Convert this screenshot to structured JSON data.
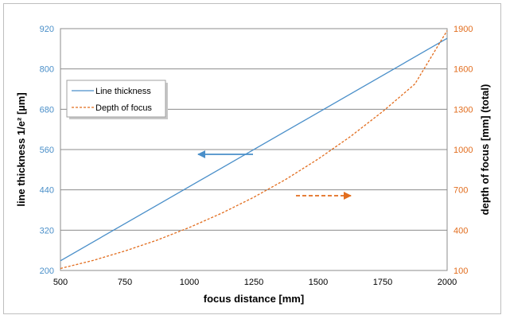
{
  "chart_data": {
    "type": "line",
    "xlabel": "focus distance [mm]",
    "ylabel_left": "line thickness  1/e²  [µm]",
    "ylabel_right": "depth of focus [mm] (total)",
    "xlim": [
      500,
      2000
    ],
    "ylim_left": [
      200,
      920
    ],
    "ylim_right": [
      100,
      1900
    ],
    "x_ticks": [
      "500",
      "750",
      "1000",
      "1250",
      "1500",
      "1750",
      "2000"
    ],
    "y_ticks_left": [
      "200",
      "320",
      "440",
      "560",
      "680",
      "800",
      "920"
    ],
    "y_ticks_right": [
      "100",
      "400",
      "700",
      "1000",
      "1300",
      "1600",
      "1900"
    ],
    "grid": true,
    "legend_placement": "upper-left",
    "series": [
      {
        "name": "Line thickness",
        "axis": "left",
        "color": "#4a8fc9",
        "style": "solid",
        "x": [
          500,
          2000
        ],
        "y": [
          229,
          891
        ]
      },
      {
        "name": "Depth of focus",
        "axis": "right",
        "color": "#e26d1e",
        "style": "dashed",
        "x": [
          500,
          625,
          750,
          875,
          1000,
          1125,
          1250,
          1375,
          1500,
          1625,
          1750,
          1875,
          2000
        ],
        "y": [
          115,
          174,
          245,
          326,
          420,
          526,
          645,
          779,
          930,
          1097,
          1283,
          1488,
          1885
        ]
      }
    ],
    "annotations": [
      {
        "type": "arrow",
        "direction": "left",
        "color": "#4a8fc9",
        "style": "solid",
        "points_to_axis": "left"
      },
      {
        "type": "arrow",
        "direction": "right",
        "color": "#e26d1e",
        "style": "dashed",
        "points_to_axis": "right"
      }
    ]
  }
}
